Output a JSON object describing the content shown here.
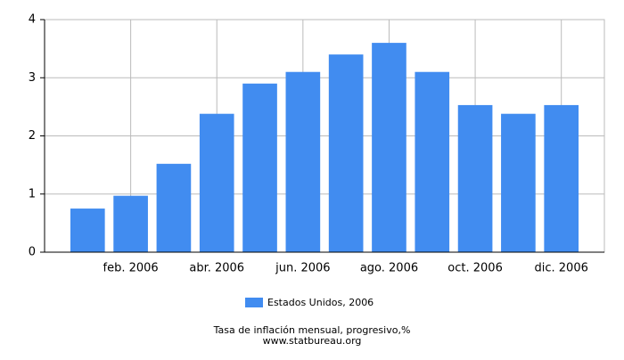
{
  "chart_data": {
    "type": "bar",
    "categories": [
      null,
      "feb. 2006",
      null,
      "abr. 2006",
      null,
      "jun. 2006",
      null,
      "ago. 2006",
      null,
      "oct. 2006",
      null,
      "dic. 2006"
    ],
    "series": [
      {
        "name": "Estados Unidos, 2006",
        "color": "#418cf0",
        "values": [
          0.75,
          0.97,
          1.52,
          2.38,
          2.9,
          3.1,
          3.4,
          3.6,
          3.1,
          2.53,
          2.38,
          2.53
        ]
      }
    ],
    "ylim": [
      0,
      4
    ],
    "yticks": [
      0,
      1,
      2,
      3,
      4
    ],
    "grid": true,
    "caption": "Tasa de inflación mensual, progresivo,%",
    "source": "www.statbureau.org"
  }
}
